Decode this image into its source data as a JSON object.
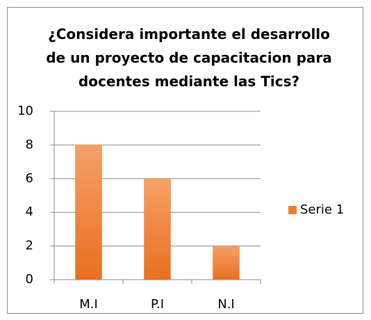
{
  "chart_data": {
    "type": "bar",
    "title": "¿Considera importante el desarrollo de un proyecto de capacitacion para docentes mediante las Tics?",
    "categories": [
      "M.I",
      "P.I",
      "N.I"
    ],
    "series": [
      {
        "name": "Serie 1",
        "color": "#f07f2c",
        "values": [
          8,
          6,
          2
        ]
      }
    ],
    "ylim": [
      0,
      10
    ],
    "yticks": [
      0,
      2,
      4,
      6,
      8,
      10
    ],
    "grid": true,
    "legend": "right"
  }
}
